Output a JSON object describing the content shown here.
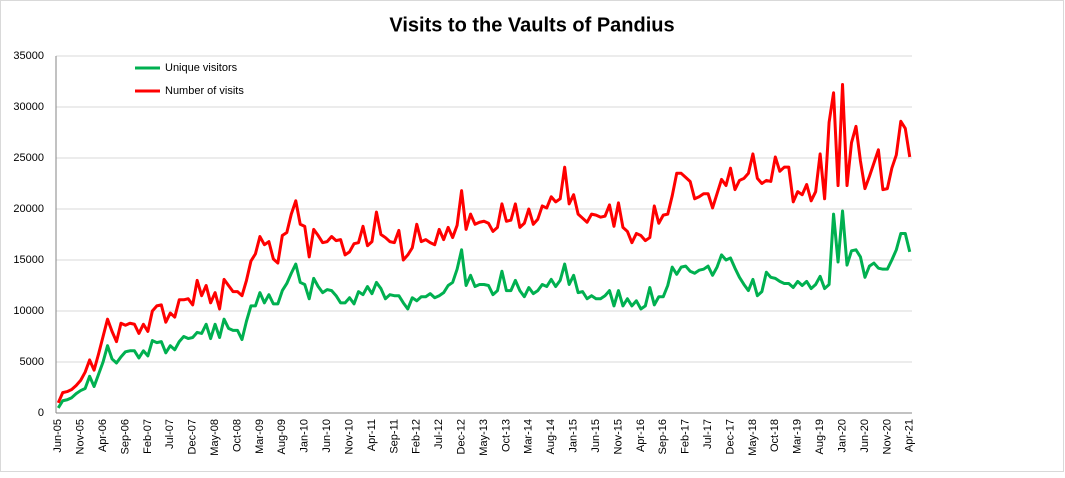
{
  "chart_data": {
    "type": "line",
    "title": "Visits to the Vaults of Pandius",
    "categories": [
      "Jun-05",
      null,
      null,
      null,
      null,
      "Nov-05",
      null,
      null,
      null,
      null,
      "Apr-06",
      null,
      null,
      null,
      null,
      "Sep-06",
      null,
      null,
      null,
      null,
      "Feb-07",
      null,
      null,
      null,
      null,
      "Jul-07",
      null,
      null,
      null,
      null,
      "Dec-07",
      null,
      null,
      null,
      null,
      "May-08",
      null,
      null,
      null,
      null,
      "Oct-08",
      null,
      null,
      null,
      null,
      "Mar-09",
      null,
      null,
      null,
      null,
      "Aug-09",
      null,
      null,
      null,
      null,
      "Jan-10",
      null,
      null,
      null,
      null,
      "Jun-10",
      null,
      null,
      null,
      null,
      "Nov-10",
      null,
      null,
      null,
      null,
      "Apr-11",
      null,
      null,
      null,
      null,
      "Sep-11",
      null,
      null,
      null,
      null,
      "Feb-12",
      null,
      null,
      null,
      null,
      "Jul-12",
      null,
      null,
      null,
      null,
      "Dec-12",
      null,
      null,
      null,
      null,
      "May-13",
      null,
      null,
      null,
      null,
      "Oct-13",
      null,
      null,
      null,
      null,
      "Mar-14",
      null,
      null,
      null,
      null,
      "Aug-14",
      null,
      null,
      null,
      null,
      "Jan-15",
      null,
      null,
      null,
      null,
      "Jun-15",
      null,
      null,
      null,
      null,
      "Nov-15",
      null,
      null,
      null,
      null,
      "Apr-16",
      null,
      null,
      null,
      null,
      "Sep-16",
      null,
      null,
      null,
      null,
      "Feb-17",
      null,
      null,
      null,
      null,
      "Jul-17",
      null,
      null,
      null,
      null,
      "Dec-17",
      null,
      null,
      null,
      null,
      "May-18",
      null,
      null,
      null,
      null,
      "Oct-18",
      null,
      null,
      null,
      null,
      "Mar-19",
      null,
      null,
      null,
      null,
      "Aug-19",
      null,
      null,
      null,
      null,
      "Jan-20",
      null,
      null,
      null,
      null,
      "Jun-20",
      null,
      null,
      null,
      null,
      "Nov-20",
      null,
      null,
      null,
      null,
      "Apr-21"
    ],
    "series": [
      {
        "name": "Unique visitors",
        "color": "#00b050",
        "values": [
          500,
          1200,
          1300,
          1500,
          1900,
          2200,
          2400,
          3600,
          2600,
          3800,
          5000,
          6600,
          5300,
          4900,
          5500,
          6000,
          6100,
          6100,
          5400,
          6100,
          5600,
          7100,
          6900,
          7000,
          5900,
          6600,
          6200,
          7000,
          7500,
          7300,
          7400,
          7900,
          7800,
          8700,
          7300,
          8700,
          7400,
          9200,
          8300,
          8100,
          8100,
          7200,
          9000,
          10500,
          10500,
          11800,
          10800,
          11600,
          10700,
          10700,
          12000,
          12700,
          13700,
          14600,
          12800,
          12600,
          11200,
          13200,
          12400,
          11800,
          12100,
          12000,
          11500,
          10800,
          10800,
          11300,
          10700,
          11900,
          11600,
          12400,
          11700,
          12800,
          12200,
          11200,
          11600,
          11500,
          11500,
          10800,
          10200,
          11300,
          11000,
          11400,
          11400,
          11700,
          11300,
          11500,
          11800,
          12500,
          12800,
          14100,
          16000,
          12500,
          13500,
          12400,
          12600,
          12600,
          12500,
          11600,
          12000,
          13900,
          12000,
          12000,
          13000,
          12000,
          11400,
          12300,
          11700,
          12000,
          12600,
          12400,
          13100,
          12400,
          13000,
          14600,
          12600,
          13500,
          11800,
          11900,
          11200,
          11500,
          11200,
          11200,
          11500,
          12000,
          10500,
          12000,
          10500,
          11200,
          10500,
          11000,
          10200,
          10500,
          12300,
          10600,
          11400,
          11400,
          12500,
          14300,
          13600,
          14300,
          14400,
          13900,
          13700,
          14000,
          14100,
          14400,
          13500,
          14300,
          15500,
          15000,
          15200,
          14200,
          13300,
          12600,
          12000,
          13100,
          11500,
          11900,
          13800,
          13300,
          13200,
          12900,
          12700,
          12700,
          12300,
          12900,
          12500,
          12900,
          12200,
          12600,
          13400,
          12200,
          12600,
          19500,
          14800,
          19800,
          14500,
          15900,
          16000,
          15300,
          13300,
          14400,
          14700,
          14200,
          14100,
          14100,
          15000,
          16000,
          17600,
          17600,
          15800
        ]
      },
      {
        "name": "Number of visits",
        "color": "#ff0000",
        "values": [
          1000,
          2000,
          2100,
          2300,
          2700,
          3200,
          4000,
          5200,
          4200,
          5800,
          7500,
          9200,
          8000,
          7000,
          8800,
          8600,
          8800,
          8700,
          7800,
          8700,
          8000,
          10000,
          10500,
          10600,
          8900,
          9800,
          9400,
          11100,
          11100,
          11200,
          10600,
          13000,
          11500,
          12500,
          10800,
          11800,
          10200,
          13100,
          12500,
          11900,
          11900,
          11500,
          13000,
          14900,
          15600,
          17300,
          16500,
          16800,
          15100,
          14700,
          17400,
          17700,
          19500,
          20800,
          18500,
          18300,
          15300,
          18000,
          17400,
          16700,
          16800,
          17300,
          16900,
          17000,
          15500,
          15800,
          16600,
          16700,
          18300,
          16400,
          16800,
          19700,
          17500,
          17200,
          16800,
          16700,
          17900,
          15000,
          15500,
          16200,
          18500,
          16800,
          17000,
          16700,
          16500,
          18000,
          17000,
          18200,
          17200,
          18400,
          21800,
          18000,
          19500,
          18500,
          18700,
          18800,
          18600,
          17800,
          18200,
          20500,
          18800,
          18900,
          20500,
          18200,
          18600,
          20000,
          18500,
          19000,
          20300,
          20100,
          21200,
          20700,
          21000,
          24100,
          20500,
          21400,
          19500,
          19100,
          18700,
          19500,
          19400,
          19200,
          19300,
          20400,
          18300,
          20600,
          18200,
          17800,
          16700,
          17600,
          17400,
          16900,
          17200,
          20300,
          18600,
          19400,
          19500,
          21300,
          23500,
          23500,
          23100,
          22700,
          21000,
          21200,
          21500,
          21500,
          20100,
          21500,
          22900,
          22300,
          24000,
          21900,
          22800,
          23000,
          23500,
          25400,
          23000,
          22500,
          22800,
          22700,
          25100,
          23700,
          24100,
          24100,
          20700,
          21700,
          21400,
          22400,
          20800,
          21700,
          25400,
          21000,
          28500,
          31400,
          22300,
          32200,
          22300,
          26500,
          28100,
          24700,
          22000,
          23200,
          24500,
          25800,
          21900,
          22000,
          24000,
          25300,
          28600,
          27900,
          25100
        ]
      }
    ],
    "ylim": [
      0,
      35000
    ],
    "yticks": [
      0,
      5000,
      10000,
      15000,
      20000,
      25000,
      30000,
      35000
    ],
    "grid": true,
    "legend": "upper left"
  }
}
